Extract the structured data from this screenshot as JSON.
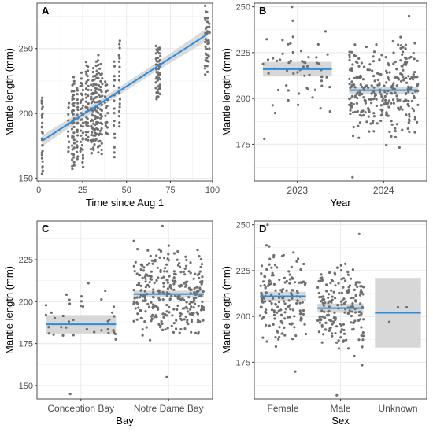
{
  "colors": {
    "fit_line": "#2b8cdf",
    "ribbon": "#d3d3d3",
    "points": "#6e6e6e",
    "grid": "#ebebeb",
    "panel_border": "#4d4d4d"
  },
  "chart_data": [
    {
      "id": "A",
      "type": "scatter",
      "panel_label": "A",
      "xlabel": "Time since Aug 1",
      "ylabel": "Mantle length (mm)",
      "xlim": [
        -1,
        99
      ],
      "ylim": [
        148,
        285
      ],
      "xticks": [
        0,
        25,
        50,
        75,
        100
      ],
      "yticks": [
        150,
        200,
        250
      ],
      "grid": true,
      "fit": {
        "x": [
          2,
          96
        ],
        "y": [
          179,
          261
        ],
        "ci_low_ends": [
          174,
          256
        ],
        "ci_high_ends": [
          184,
          266
        ],
        "ci_mid": 3
      },
      "point_groups": [
        {
          "x": 2,
          "y_min": 153,
          "y_max": 212,
          "n": 26
        },
        {
          "x": 17,
          "y_min": 170,
          "y_max": 208,
          "n": 10
        },
        {
          "x": 19,
          "y_min": 157,
          "y_max": 222,
          "n": 18
        },
        {
          "x": 20,
          "y_min": 160,
          "y_max": 228,
          "n": 22
        },
        {
          "x": 22,
          "y_min": 165,
          "y_max": 220,
          "n": 20
        },
        {
          "x": 24,
          "y_min": 170,
          "y_max": 232,
          "n": 16
        },
        {
          "x": 25,
          "y_min": 158,
          "y_max": 224,
          "n": 20
        },
        {
          "x": 27,
          "y_min": 180,
          "y_max": 240,
          "n": 18
        },
        {
          "x": 28,
          "y_min": 178,
          "y_max": 236,
          "n": 16
        },
        {
          "x": 30,
          "y_min": 168,
          "y_max": 222,
          "n": 20
        },
        {
          "x": 31,
          "y_min": 172,
          "y_max": 235,
          "n": 22
        },
        {
          "x": 32,
          "y_min": 176,
          "y_max": 230,
          "n": 18
        },
        {
          "x": 33,
          "y_min": 180,
          "y_max": 240,
          "n": 18
        },
        {
          "x": 34,
          "y_min": 170,
          "y_max": 245,
          "n": 18
        },
        {
          "x": 35,
          "y_min": 175,
          "y_max": 238,
          "n": 16
        },
        {
          "x": 36,
          "y_min": 168,
          "y_max": 232,
          "n": 14
        },
        {
          "x": 38,
          "y_min": 185,
          "y_max": 225,
          "n": 10
        },
        {
          "x": 39,
          "y_min": 183,
          "y_max": 222,
          "n": 8
        },
        {
          "x": 43,
          "y_min": 165,
          "y_max": 240,
          "n": 16
        },
        {
          "x": 46,
          "y_min": 190,
          "y_max": 256,
          "n": 20
        },
        {
          "x": 67,
          "y_min": 210,
          "y_max": 252,
          "n": 16
        },
        {
          "x": 68,
          "y_min": 213,
          "y_max": 250,
          "n": 14
        },
        {
          "x": 69,
          "y_min": 215,
          "y_max": 252,
          "n": 14
        },
        {
          "x": 95,
          "y_min": 230,
          "y_max": 283,
          "n": 14
        },
        {
          "x": 96,
          "y_min": 232,
          "y_max": 278,
          "n": 14
        },
        {
          "x": 97,
          "y_min": 240,
          "y_max": 270,
          "n": 8
        }
      ]
    },
    {
      "id": "B",
      "type": "scatter",
      "panel_label": "B",
      "xlabel": "Year",
      "ylabel": "Mantle length (mm)",
      "ylim": [
        155,
        252
      ],
      "yticks": [
        175,
        200,
        225,
        250
      ],
      "categories": [
        "2023",
        "2024"
      ],
      "grid": true,
      "groups": [
        {
          "mean": 216,
          "ci": [
            212,
            220
          ],
          "y_min": 178,
          "y_max": 250,
          "n": 60
        },
        {
          "mean": 204.5,
          "ci": [
            202.5,
            206.5
          ],
          "y_min": 157,
          "y_max": 245,
          "n": 300
        }
      ]
    },
    {
      "id": "C",
      "type": "scatter",
      "panel_label": "C",
      "xlabel": "Bay",
      "ylabel": "Mantle length (mm)",
      "ylim": [
        142,
        248
      ],
      "yticks": [
        150,
        175,
        200,
        225
      ],
      "categories": [
        "Conception Bay",
        "Notre Dame Bay"
      ],
      "grid": true,
      "groups": [
        {
          "mean": 186.5,
          "ci": [
            181,
            192
          ],
          "y_min": 145,
          "y_max": 211,
          "n": 40
        },
        {
          "mean": 204.5,
          "ci": [
            202.5,
            206.5
          ],
          "y_min": 155,
          "y_max": 245,
          "n": 320
        }
      ]
    },
    {
      "id": "D",
      "type": "scatter",
      "panel_label": "D",
      "xlabel": "Sex",
      "ylabel": "Mantle length (mm)",
      "ylim": [
        155,
        252
      ],
      "yticks": [
        175,
        200,
        225,
        250
      ],
      "categories": [
        "Female",
        "Male",
        "Unknown"
      ],
      "grid": true,
      "groups": [
        {
          "mean": 211,
          "ci": [
            208.5,
            213.5
          ],
          "y_min": 170,
          "y_max": 250,
          "n": 170
        },
        {
          "mean": 204.5,
          "ci": [
            202,
            207
          ],
          "y_min": 157,
          "y_max": 245,
          "n": 190
        },
        {
          "mean": 202,
          "ci": [
            183,
            221
          ],
          "y_min": 197,
          "y_max": 205,
          "n": 3
        }
      ]
    }
  ]
}
